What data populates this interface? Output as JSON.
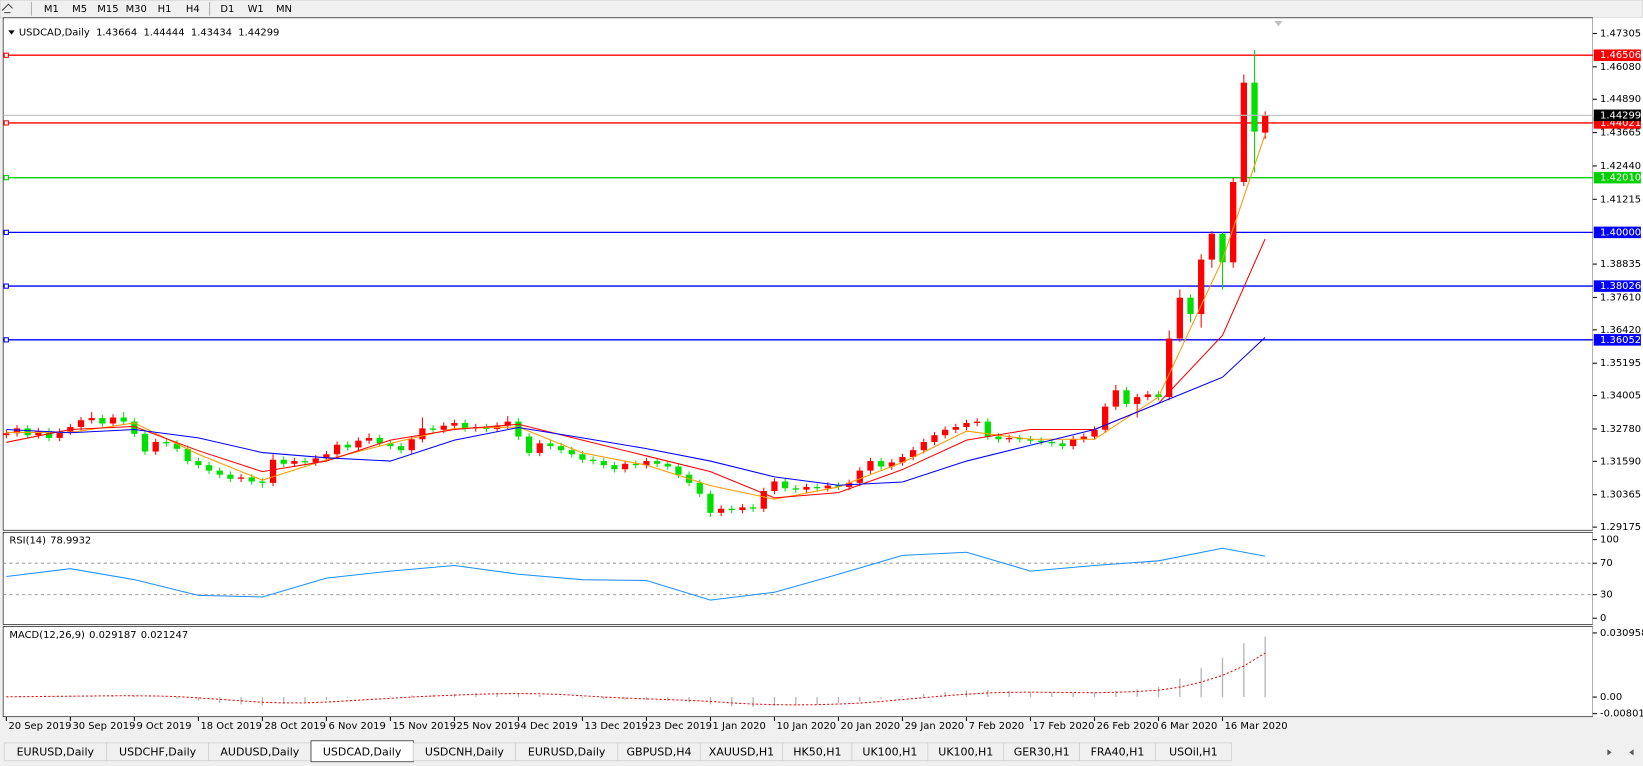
{
  "timeframes": [
    "M1",
    "M5",
    "M15",
    "M30",
    "H1",
    "H4",
    "D1",
    "W1",
    "MN"
  ],
  "tabs": [
    "EURUSD,Daily",
    "USDCHF,Daily",
    "AUDUSD,Daily",
    "USDCAD,Daily",
    "USDCNH,Daily",
    "EURUSD,Daily",
    "GBPUSD,H4",
    "XAUUSD,H1",
    "HK50,H1",
    "UK100,H1",
    "UK100,H1",
    "GER30,H1",
    "FRA40,H1",
    "USOil,H1"
  ],
  "active_tab": 3,
  "chart_data": [
    {
      "type": "candlestick",
      "title": "USDCAD,Daily",
      "up_color": "#ff0000",
      "down_color": "#00e000",
      "xlim": [
        -0.3,
        148.7
      ],
      "ylim": [
        1.2906,
        1.4788
      ],
      "xticks": [
        {
          "value": 0,
          "label": "20 Sep 2019"
        },
        {
          "value": 6,
          "label": "30 Sep 2019"
        },
        {
          "value": 12,
          "label": "9 Oct 2019"
        },
        {
          "value": 18,
          "label": "18 Oct 2019"
        },
        {
          "value": 24,
          "label": "28 Oct 2019"
        },
        {
          "value": 30,
          "label": "6 Nov 2019"
        },
        {
          "value": 36,
          "label": "15 Nov 2019"
        },
        {
          "value": 42,
          "label": "25 Nov 2019"
        },
        {
          "value": 48,
          "label": "4 Dec 2019"
        },
        {
          "value": 54,
          "label": "13 Dec 2019"
        },
        {
          "value": 60,
          "label": "23 Dec 2019"
        },
        {
          "value": 66,
          "label": "1 Jan 2020"
        },
        {
          "value": 72,
          "label": "10 Jan 2020"
        },
        {
          "value": 78,
          "label": "20 Jan 2020"
        },
        {
          "value": 84,
          "label": "29 Jan 2020"
        },
        {
          "value": 90,
          "label": "7 Feb 2020"
        },
        {
          "value": 96,
          "label": "17 Feb 2020"
        },
        {
          "value": 102,
          "label": "26 Feb 2020"
        },
        {
          "value": 108,
          "label": "6 Mar 2020"
        },
        {
          "value": 114,
          "label": "16 Mar 2020"
        }
      ],
      "yticks": [
        1.47305,
        {
          "value": 1.4608,
          "label": "1.46080"
        },
        {
          "value": 1.4489,
          "label": "1.44890"
        },
        1.43665,
        {
          "value": 1.4244,
          "label": "1.42440"
        },
        1.41215,
        1.38835,
        {
          "value": 1.3761,
          "label": "1.37610"
        },
        {
          "value": 1.3642,
          "label": "1.36420"
        },
        1.35195,
        1.34005,
        {
          "value": 1.3278,
          "label": "1.32780"
        },
        {
          "value": 1.3159,
          "label": "1.31590"
        },
        1.30365,
        1.29175
      ],
      "levels": [
        {
          "value": 1.46506,
          "color": "#ff0000"
        },
        {
          "value": 1.44021,
          "color": "#ff0000"
        },
        {
          "value": 1.4201,
          "label": "1.42010",
          "color": "#00d000"
        },
        {
          "value": 1.4,
          "label": "1.40000",
          "color": "#0000ff"
        },
        {
          "value": 1.38026,
          "color": "#0000ff"
        },
        {
          "value": 1.36052,
          "color": "#0000ff"
        }
      ],
      "open": [
        1.3255,
        1.3262,
        1.328,
        1.3255,
        1.327,
        1.3245,
        1.3268,
        1.3285,
        1.331,
        1.3318,
        1.3298,
        1.332,
        1.3305,
        1.326,
        1.3195,
        1.323,
        1.3225,
        1.3205,
        1.316,
        1.3145,
        1.3125,
        1.311,
        1.3095,
        1.31,
        1.3085,
        1.308,
        1.3165,
        1.315,
        1.316,
        1.3155,
        1.317,
        1.3185,
        1.322,
        1.321,
        1.3235,
        1.3245,
        1.3225,
        1.3215,
        1.32,
        1.324,
        1.328,
        1.3275,
        1.329,
        1.33,
        1.328,
        1.3285,
        1.3278,
        1.329,
        1.3305,
        1.325,
        1.319,
        1.3225,
        1.3215,
        1.32,
        1.3185,
        1.3165,
        1.316,
        1.3145,
        1.313,
        1.315,
        1.3145,
        1.316,
        1.315,
        1.314,
        1.311,
        1.308,
        1.304,
        1.297,
        1.2985,
        1.298,
        1.299,
        1.2985,
        1.305,
        1.3085,
        1.306,
        1.3055,
        1.3065,
        1.306,
        1.307,
        1.3065,
        1.308,
        1.3125,
        1.316,
        1.314,
        1.3155,
        1.3175,
        1.32,
        1.323,
        1.3255,
        1.3275,
        1.3285,
        1.33,
        1.3305,
        1.325,
        1.324,
        1.3245,
        1.324,
        1.3235,
        1.323,
        1.3225,
        1.3215,
        1.324,
        1.325,
        1.3275,
        1.336,
        1.342,
        1.337,
        1.3395,
        1.3405,
        1.3395,
        1.361,
        1.376,
        1.37,
        1.39,
        1.3995,
        1.389,
        1.4185,
        1.455,
        1.43664
      ],
      "high": [
        1.3274,
        1.3292,
        1.3292,
        1.3282,
        1.3282,
        1.328,
        1.3297,
        1.3322,
        1.334,
        1.333,
        1.3332,
        1.334,
        1.3317,
        1.3272,
        1.3242,
        1.3242,
        1.3237,
        1.3217,
        1.3172,
        1.3157,
        1.3137,
        1.3122,
        1.3112,
        1.3112,
        1.3097,
        1.3185,
        1.3177,
        1.3172,
        1.3172,
        1.3182,
        1.3197,
        1.3232,
        1.3232,
        1.3247,
        1.3262,
        1.3257,
        1.3237,
        1.3227,
        1.3252,
        1.332,
        1.3292,
        1.3302,
        1.3312,
        1.3312,
        1.3297,
        1.3297,
        1.3302,
        1.3325,
        1.3317,
        1.3262,
        1.3237,
        1.3237,
        1.3227,
        1.3212,
        1.3197,
        1.3177,
        1.3172,
        1.3157,
        1.3162,
        1.3162,
        1.3172,
        1.3172,
        1.3162,
        1.3152,
        1.3122,
        1.3092,
        1.3052,
        1.2997,
        1.2997,
        1.3002,
        1.3002,
        1.3062,
        1.3097,
        1.3097,
        1.3072,
        1.3077,
        1.3077,
        1.3082,
        1.3082,
        1.3092,
        1.3137,
        1.3172,
        1.3172,
        1.3167,
        1.3187,
        1.3212,
        1.3242,
        1.3267,
        1.3287,
        1.3297,
        1.3312,
        1.3317,
        1.3317,
        1.3262,
        1.3257,
        1.3257,
        1.3252,
        1.3247,
        1.3242,
        1.3237,
        1.3252,
        1.3262,
        1.3287,
        1.3372,
        1.344,
        1.3432,
        1.3407,
        1.3417,
        1.3417,
        1.364,
        1.379,
        1.3772,
        1.392,
        1.4005,
        1.4,
        1.42,
        1.458,
        1.467,
        1.44444
      ],
      "low": [
        1.3243,
        1.325,
        1.3243,
        1.3243,
        1.3233,
        1.3233,
        1.3256,
        1.3273,
        1.3298,
        1.3286,
        1.3286,
        1.3293,
        1.3248,
        1.3183,
        1.3183,
        1.3213,
        1.3193,
        1.3148,
        1.3133,
        1.3113,
        1.3098,
        1.3083,
        1.3083,
        1.3073,
        1.3062,
        1.3068,
        1.3138,
        1.3138,
        1.3143,
        1.3143,
        1.3158,
        1.3173,
        1.3198,
        1.3198,
        1.3223,
        1.3213,
        1.3203,
        1.3188,
        1.3188,
        1.3228,
        1.3263,
        1.3263,
        1.3278,
        1.3268,
        1.3268,
        1.3266,
        1.3266,
        1.3278,
        1.3238,
        1.3178,
        1.3178,
        1.3203,
        1.3188,
        1.3173,
        1.3153,
        1.3148,
        1.3133,
        1.3118,
        1.3118,
        1.3133,
        1.3133,
        1.3138,
        1.3128,
        1.3098,
        1.3068,
        1.3028,
        1.2955,
        1.2958,
        1.2968,
        1.2968,
        1.2973,
        1.2973,
        1.3038,
        1.3048,
        1.3043,
        1.3043,
        1.3048,
        1.3048,
        1.3053,
        1.3053,
        1.3068,
        1.3113,
        1.3128,
        1.3128,
        1.3143,
        1.3163,
        1.3188,
        1.3218,
        1.3243,
        1.3263,
        1.3273,
        1.3288,
        1.3238,
        1.3228,
        1.3228,
        1.3228,
        1.3223,
        1.3218,
        1.3213,
        1.3203,
        1.3203,
        1.3228,
        1.3238,
        1.3263,
        1.3348,
        1.3358,
        1.332,
        1.3383,
        1.3383,
        1.3383,
        1.3598,
        1.367,
        1.365,
        1.387,
        1.379,
        1.387,
        1.417,
        1.422,
        1.43434
      ],
      "close": [
        1.3262,
        1.328,
        1.3255,
        1.327,
        1.3245,
        1.3268,
        1.3285,
        1.331,
        1.3318,
        1.3298,
        1.332,
        1.3305,
        1.326,
        1.3195,
        1.323,
        1.3225,
        1.3205,
        1.316,
        1.3145,
        1.3125,
        1.311,
        1.3095,
        1.31,
        1.3085,
        1.308,
        1.3165,
        1.315,
        1.316,
        1.3155,
        1.317,
        1.3185,
        1.322,
        1.321,
        1.3235,
        1.3245,
        1.3225,
        1.3215,
        1.32,
        1.324,
        1.328,
        1.3275,
        1.329,
        1.33,
        1.328,
        1.3285,
        1.3278,
        1.329,
        1.3305,
        1.325,
        1.319,
        1.3225,
        1.3215,
        1.32,
        1.3185,
        1.3165,
        1.316,
        1.3145,
        1.313,
        1.315,
        1.3145,
        1.316,
        1.315,
        1.314,
        1.311,
        1.308,
        1.304,
        1.297,
        1.2985,
        1.298,
        1.299,
        1.2985,
        1.305,
        1.3085,
        1.306,
        1.3055,
        1.3065,
        1.306,
        1.307,
        1.3065,
        1.308,
        1.3125,
        1.316,
        1.314,
        1.3155,
        1.3175,
        1.32,
        1.323,
        1.3255,
        1.3275,
        1.3285,
        1.33,
        1.3305,
        1.325,
        1.324,
        1.3245,
        1.324,
        1.3235,
        1.323,
        1.3225,
        1.3215,
        1.324,
        1.325,
        1.3275,
        1.336,
        1.342,
        1.337,
        1.3395,
        1.3405,
        1.3395,
        1.361,
        1.376,
        1.37,
        1.39,
        1.3995,
        1.389,
        1.4185,
        1.455,
        1.437,
        1.44299
      ],
      "series": [
        {
          "color": "#ff9900",
          "x": [
            0,
            6,
            12,
            18,
            24,
            30,
            36,
            42,
            48,
            54,
            60,
            66,
            72,
            78,
            84,
            90,
            96,
            102,
            108,
            114,
            118
          ],
          "values": [
            1.3265,
            1.3265,
            1.33,
            1.3185,
            1.309,
            1.3165,
            1.3225,
            1.328,
            1.3285,
            1.319,
            1.3145,
            1.307,
            1.302,
            1.3065,
            1.3155,
            1.327,
            1.324,
            1.324,
            1.3395,
            1.39,
            1.436
          ]
        },
        {
          "color": "#ff0000",
          "x": [
            0,
            6,
            12,
            18,
            24,
            30,
            36,
            42,
            48,
            54,
            60,
            66,
            72,
            78,
            84,
            90,
            96,
            102,
            108,
            114,
            118
          ],
          "values": [
            1.3229,
            1.3276,
            1.3287,
            1.3198,
            1.3121,
            1.316,
            1.3237,
            1.3276,
            1.3295,
            1.3237,
            1.3179,
            1.3121,
            1.3025,
            1.3044,
            1.3129,
            1.3237,
            1.3276,
            1.3276,
            1.3372,
            1.3622,
            1.3976
          ]
        },
        {
          "color": "#0000ff",
          "x": [
            0,
            6,
            12,
            18,
            24,
            30,
            36,
            42,
            48,
            54,
            60,
            66,
            72,
            78,
            84,
            90,
            96,
            102,
            108,
            114,
            118
          ],
          "values": [
            1.3276,
            1.3264,
            1.3276,
            1.3245,
            1.3191,
            1.3172,
            1.316,
            1.3237,
            1.3283,
            1.3245,
            1.3206,
            1.316,
            1.3102,
            1.3071,
            1.3083,
            1.316,
            1.3218,
            1.3276,
            1.3372,
            1.3468,
            1.3614
          ]
        }
      ]
    },
    {
      "type": "line",
      "title": "RSI(14)",
      "xlim": [
        -0.3,
        148.7
      ],
      "ylim": [
        -8,
        109.3
      ],
      "yticks": [
        0,
        30,
        70,
        100
      ],
      "levels": [
        30,
        70
      ],
      "series": [
        {
          "color": "#1e90ff",
          "x": [
            0,
            6,
            12,
            18,
            24,
            30,
            36,
            42,
            48,
            54,
            60,
            66,
            72,
            78,
            84,
            90,
            96,
            102,
            108,
            114,
            118
          ],
          "values": [
            53,
            63,
            49,
            29,
            27,
            51,
            60,
            67,
            56,
            49,
            48,
            23,
            33,
            56,
            80,
            84,
            60,
            67,
            73,
            89,
            78.9932
          ]
        }
      ]
    },
    {
      "type": "macd",
      "title": "MACD(12,26,9)",
      "xlim": [
        -0.3,
        148.7
      ],
      "ylim": [
        -0.0095,
        0.034
      ],
      "yticks": [
        0.030958,
        {
          "value": 0,
          "label": "0.00"
        },
        -0.008013
      ],
      "bars": {
        "color": "#b0b0b0",
        "x": [
          0,
          2,
          4,
          6,
          8,
          10,
          12,
          14,
          16,
          18,
          20,
          22,
          24,
          26,
          28,
          30,
          32,
          34,
          36,
          38,
          40,
          42,
          44,
          46,
          48,
          50,
          52,
          54,
          56,
          58,
          60,
          62,
          64,
          66,
          68,
          70,
          72,
          74,
          76,
          78,
          80,
          82,
          84,
          86,
          88,
          90,
          92,
          94,
          96,
          98,
          100,
          102,
          104,
          106,
          108,
          110,
          112,
          114,
          116,
          118
        ],
        "values": [
          0.0002,
          0.0004,
          0.0005,
          0.0006,
          0.0007,
          0.0008,
          0.0005,
          0.0002,
          -0.0008,
          -0.0018,
          -0.0028,
          -0.0035,
          -0.004,
          -0.0032,
          -0.0025,
          -0.0015,
          -0.0005,
          0.0002,
          0.0004,
          0.0008,
          0.0012,
          0.0016,
          0.0018,
          0.002,
          0.0018,
          0.001,
          0.0002,
          -0.0006,
          -0.001,
          -0.0012,
          -0.0014,
          -0.0018,
          -0.0025,
          -0.0035,
          -0.0045,
          -0.0048,
          -0.0042,
          -0.004,
          -0.0036,
          -0.003,
          -0.002,
          -0.0008,
          0.0005,
          0.0015,
          0.0025,
          0.0032,
          0.0034,
          0.003,
          0.0026,
          0.0022,
          0.002,
          0.0022,
          0.003,
          0.0038,
          0.005,
          0.009,
          0.014,
          0.019,
          0.026,
          0.029187
        ]
      },
      "signal": {
        "color": "#ff0000",
        "x": [
          0,
          2,
          4,
          6,
          8,
          10,
          12,
          14,
          16,
          18,
          20,
          22,
          24,
          26,
          28,
          30,
          32,
          34,
          36,
          38,
          40,
          42,
          44,
          46,
          48,
          50,
          52,
          54,
          56,
          58,
          60,
          62,
          64,
          66,
          68,
          70,
          72,
          74,
          76,
          78,
          80,
          82,
          84,
          86,
          88,
          90,
          92,
          94,
          96,
          98,
          100,
          102,
          104,
          106,
          108,
          110,
          112,
          114,
          116,
          118
        ],
        "values": [
          0.0001,
          0.0002,
          0.0003,
          0.0004,
          0.0005,
          0.0006,
          0.0006,
          0.0005,
          0.0002,
          -0.0004,
          -0.0011,
          -0.0018,
          -0.0025,
          -0.0028,
          -0.0028,
          -0.0024,
          -0.0018,
          -0.0012,
          -0.0006,
          0.0,
          0.0005,
          0.0009,
          0.0013,
          0.0016,
          0.0017,
          0.0016,
          0.0012,
          0.0006,
          0.0,
          -0.0005,
          -0.0009,
          -0.0012,
          -0.0016,
          -0.0021,
          -0.0028,
          -0.0034,
          -0.0037,
          -0.0038,
          -0.0037,
          -0.0034,
          -0.0029,
          -0.0021,
          -0.0012,
          -0.0003,
          0.0006,
          0.0014,
          0.002,
          0.0023,
          0.0024,
          0.0023,
          0.0022,
          0.0021,
          0.0023,
          0.0027,
          0.0033,
          0.0048,
          0.0072,
          0.0105,
          0.015,
          0.021247
        ]
      }
    }
  ]
}
